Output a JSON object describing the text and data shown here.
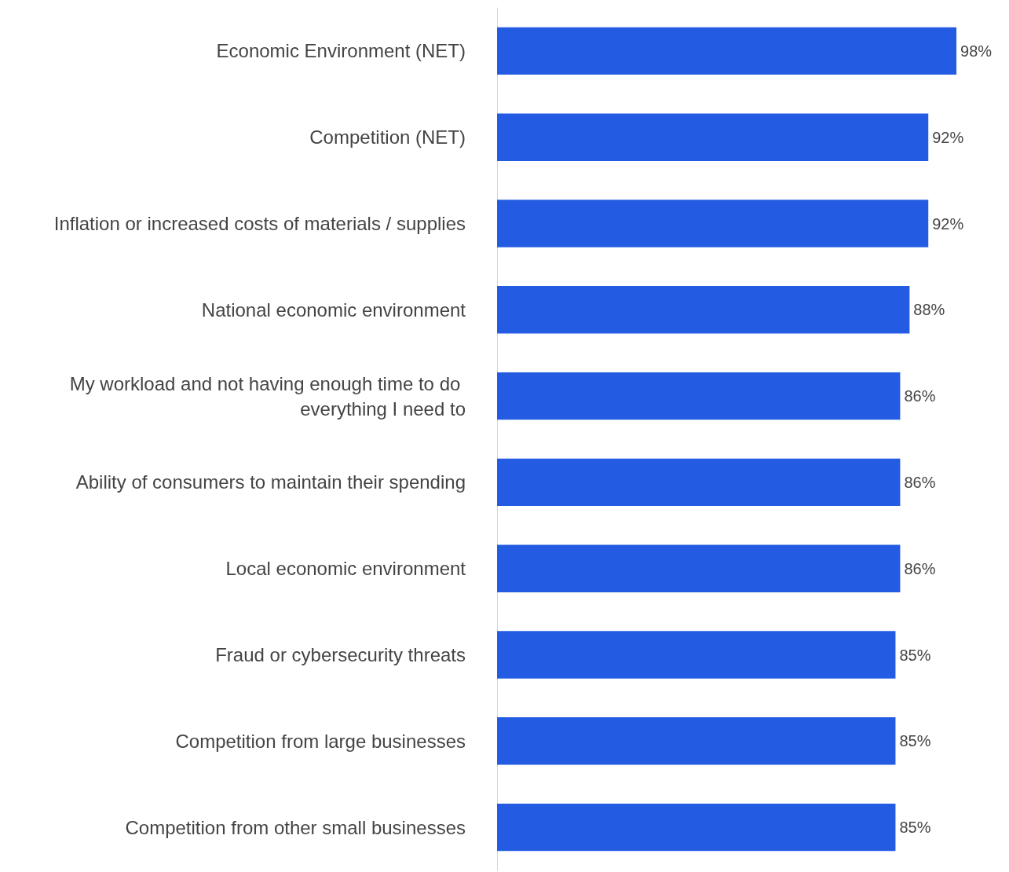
{
  "chart_data": {
    "type": "bar",
    "orientation": "horizontal",
    "categories": [
      "Economic Environment (NET)",
      "Competition (NET)",
      "Inflation or increased costs of materials / supplies",
      "National economic environment",
      "My workload and not having enough time to do everything I need to",
      "Ability of consumers to maintain their spending",
      "Local economic environment",
      "Fraud or cybersecurity threats",
      "Competition from large businesses",
      "Competition from other small businesses"
    ],
    "values": [
      98,
      92,
      92,
      88,
      86,
      86,
      86,
      85,
      85,
      85
    ],
    "value_labels": [
      "98%",
      "92%",
      "92%",
      "88%",
      "86%",
      "86%",
      "86%",
      "85%",
      "85%",
      "85%"
    ],
    "color": "#235ce3"
  }
}
